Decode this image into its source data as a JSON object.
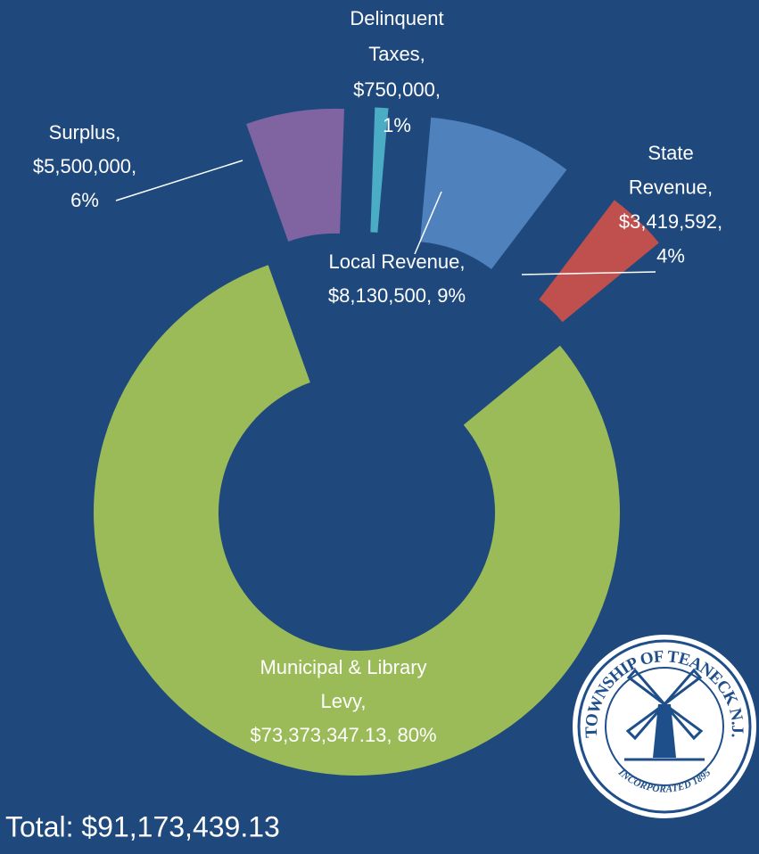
{
  "chart_data": {
    "type": "donut",
    "values": [
      8130500,
      3419592,
      73373347.13,
      5500000,
      750000
    ],
    "value_labels": [
      [
        "Local Revenue,",
        "$8,130,500, 9%"
      ],
      [
        "State",
        "Revenue,",
        "$3,419,592,",
        "4%"
      ],
      [
        "Municipal & Library",
        "Levy,",
        "$73,373,347.13, 80%"
      ],
      [
        "Surplus,",
        "$5,500,000,",
        "6%"
      ],
      [
        "Delinquent",
        "Taxes,",
        "$750,000,",
        "1%"
      ]
    ],
    "colors": [
      "#4f81bd",
      "#c0504d",
      "#9bbb59",
      "#8064a2",
      "#4bacc6"
    ],
    "total": "Total: $91,173,439.13"
  },
  "logo": {
    "top": "TOWNSHIP OF TEANECK N.J.",
    "bottom": "INCORPORATED 1895"
  }
}
